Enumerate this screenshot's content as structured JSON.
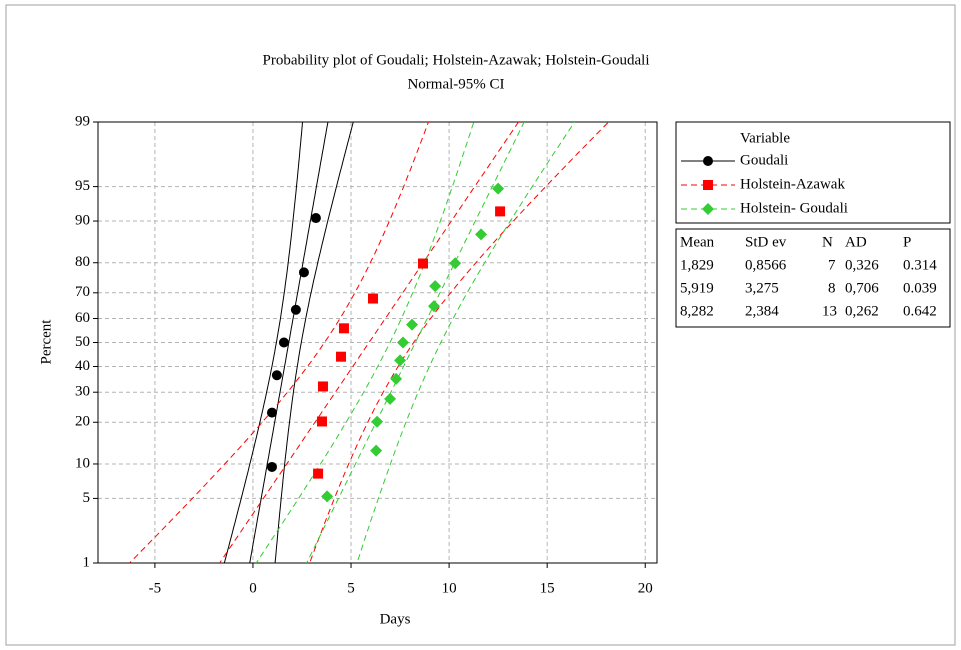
{
  "chart_data": {
    "type": "probability",
    "title": "Probability plot of Goudali; Holstein-Azawak; Holstein-Goudali",
    "subtitle": "Normal-95% CI",
    "x_label": "Days",
    "y_label": "Percent",
    "xlim": [
      -7.9,
      20.6
    ],
    "xticks": [
      -5,
      0,
      5,
      10,
      15,
      20
    ],
    "ylim": [
      1,
      99
    ],
    "yticks": [
      1,
      5,
      10,
      20,
      30,
      40,
      50,
      60,
      70,
      80,
      90,
      95,
      99
    ],
    "grid": true,
    "legend_title": "Variable",
    "series": [
      {
        "name": "Goudali",
        "color": "#000000",
        "marker": "circle",
        "line": "solid",
        "x": [
          0.97,
          0.97,
          1.22,
          1.58,
          2.19,
          2.6,
          3.21
        ],
        "values": [
          9.46,
          22.97,
          36.49,
          50,
          63.51,
          77.03,
          90.54
        ]
      },
      {
        "name": "Holstein-Azawak",
        "color": "#ff0000",
        "marker": "square",
        "line": "dashed",
        "x": [
          3.32,
          3.52,
          3.57,
          4.49,
          4.64,
          6.12,
          8.67,
          12.6
        ],
        "values": [
          8.33,
          20.24,
          32.14,
          44.05,
          55.95,
          67.86,
          79.76,
          91.67
        ]
      },
      {
        "name": "Holstein- Goudali",
        "color": "#33cc33",
        "marker": "diamond",
        "line": "dashed",
        "x": [
          3.78,
          6.28,
          6.33,
          6.99,
          7.3,
          7.5,
          7.65,
          8.11,
          9.23,
          9.29,
          10.31,
          11.63,
          12.5
        ],
        "values": [
          5.22,
          12.69,
          20.15,
          27.61,
          35.07,
          42.54,
          50,
          57.46,
          64.93,
          72.39,
          79.85,
          87.31,
          94.78
        ]
      }
    ],
    "stats_table": {
      "columns": [
        "Mean",
        "StD ev",
        "N",
        "AD",
        "P"
      ],
      "rows": [
        [
          {
            "value": 1.829,
            "label": "1,829"
          },
          {
            "value": 0.8566,
            "label": "0,8566"
          },
          7,
          {
            "value": 0.326,
            "label": "0,326"
          },
          0.314
        ],
        [
          {
            "value": 5.919,
            "label": "5,919"
          },
          {
            "value": 3.275,
            "label": "3,275"
          },
          8,
          {
            "value": 0.706,
            "label": "0,706"
          },
          0.039
        ],
        [
          {
            "value": 8.282,
            "label": "8,282"
          },
          {
            "value": 2.384,
            "label": "2,384"
          },
          13,
          {
            "value": 0.262,
            "label": "0,262"
          },
          0.642
        ]
      ]
    }
  }
}
